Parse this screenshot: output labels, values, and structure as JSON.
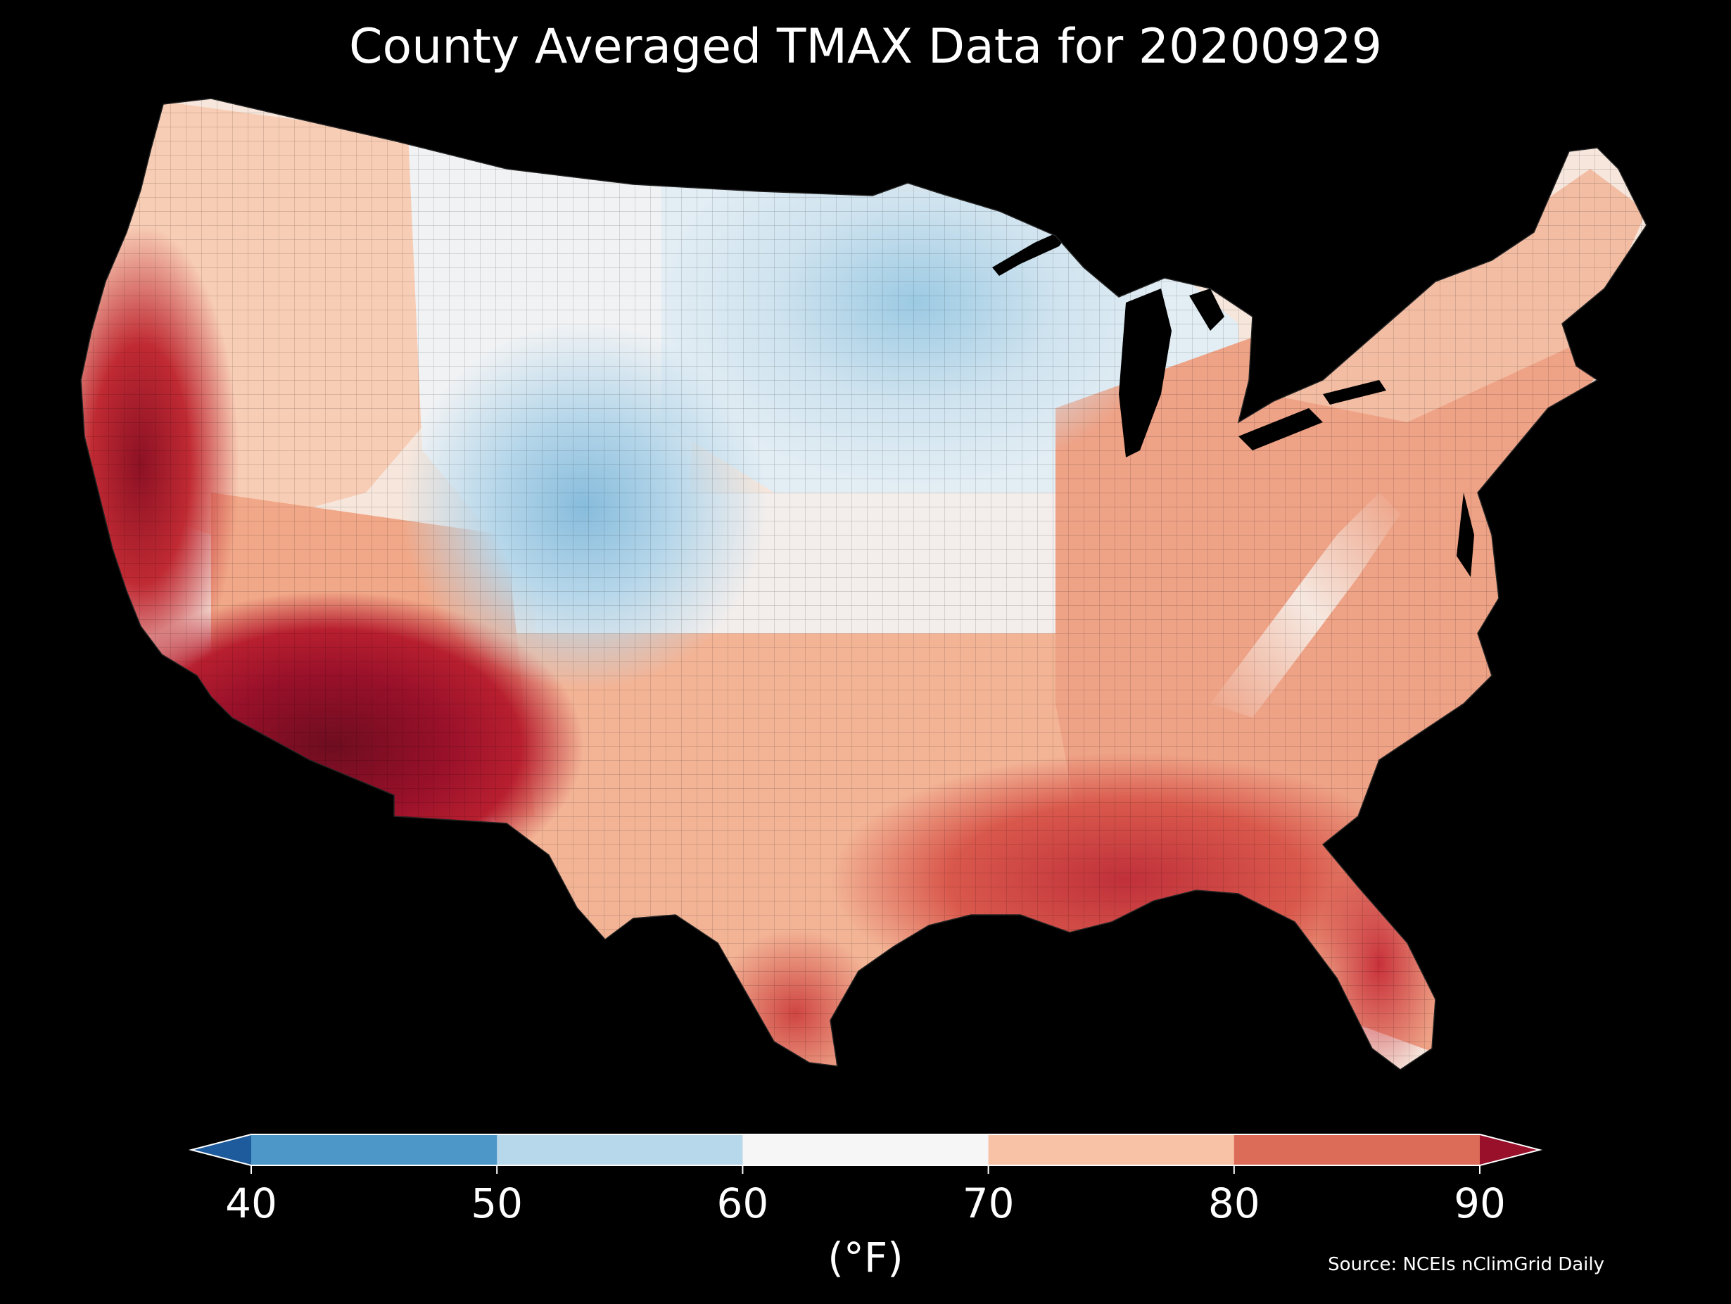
{
  "title": "County Averaged TMAX Data for 20200929",
  "colorbar": {
    "ticks": [
      "40",
      "50",
      "60",
      "70",
      "80",
      "90"
    ],
    "unit": "(°F)",
    "bins": [
      {
        "range": "<40",
        "color": "#1d5b9c"
      },
      {
        "range": "40-50",
        "color": "#4d97c8"
      },
      {
        "range": "50-60",
        "color": "#b7d7ea"
      },
      {
        "range": "60-70",
        "color": "#f7f6f6"
      },
      {
        "range": "70-80",
        "color": "#f8c2a6"
      },
      {
        "range": "80-90",
        "color": "#dc6b58"
      },
      {
        "range": ">90",
        "color": "#98102a"
      }
    ]
  },
  "source": "Source: NCEIs nClimGrid Daily",
  "map_data": {
    "type": "choropleth",
    "region": "Contiguous United States counties",
    "variable": "TMAX",
    "units": "°F",
    "date": "20200929",
    "regional_pattern": [
      {
        "region": "Desert Southwest (SE California, SW Arizona)",
        "bin": ">90"
      },
      {
        "region": "Southern California, Central Valley",
        "bin": "80-90"
      },
      {
        "region": "Gulf Coast, Florida",
        "bin": "80-90"
      },
      {
        "region": "Southeast, Mid-Atlantic, Northeast",
        "bin": "70-80"
      },
      {
        "region": "Texas, Oklahoma",
        "bin": "70-80"
      },
      {
        "region": "Great Basin, Pacific Northwest interior",
        "bin": "70-80"
      },
      {
        "region": "Central Plains, Midwest",
        "bin": "60-70"
      },
      {
        "region": "Colorado Rockies, Wyoming, Minnesota, Upper Michigan",
        "bin": "50-60"
      },
      {
        "region": "Appalachian ridges",
        "bin": "60-70"
      }
    ]
  },
  "map_colors": {
    "background": "#000000",
    "water": "#000000",
    "county_border": "#000000"
  }
}
